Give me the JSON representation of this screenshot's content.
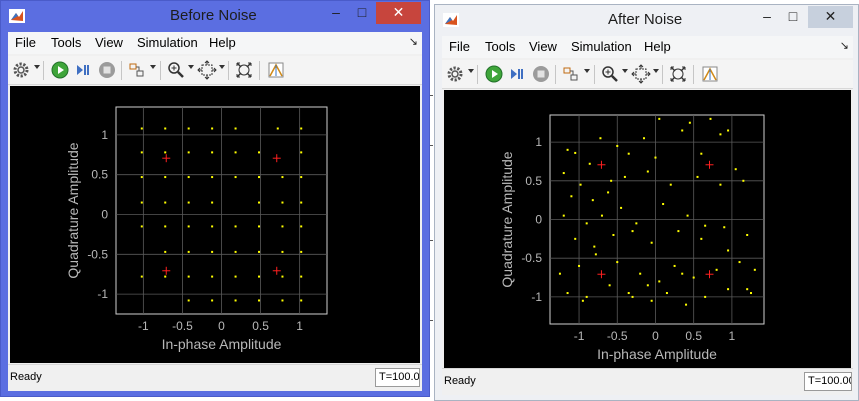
{
  "colors": {
    "before_frame": "#5b6ee1",
    "after_frame": "#eef0f4",
    "close_active": "#c7453d",
    "plot_bg": "#000000",
    "grid": "#5a5a5a",
    "axis_text": "#b8b8b8",
    "received_points": "#ffff00",
    "reference_points": "#ff2020"
  },
  "icons": [
    "matlab-icon",
    "minimize-icon",
    "maximize-icon",
    "close-icon",
    "gear-icon",
    "run-icon",
    "step-forward-icon",
    "stop-icon",
    "highlight-block-icon",
    "zoom-in-icon",
    "zoom-fit-icon",
    "scale-axes-icon",
    "measure-icon"
  ],
  "windows": {
    "before": {
      "title": "Before Noise",
      "menu": [
        "File",
        "Tools",
        "View",
        "Simulation",
        "Help"
      ],
      "status": "Ready",
      "time": "T=100.0("
    },
    "after": {
      "title": "After Noise",
      "menu": [
        "File",
        "Tools",
        "View",
        "Simulation",
        "Help"
      ],
      "status": "Ready",
      "time": "T=100.00"
    }
  },
  "chart_data": [
    {
      "type": "scatter",
      "title": "",
      "xlabel": "In-phase Amplitude",
      "ylabel": "Quadrature Amplitude",
      "xlim": [
        -1.35,
        1.35
      ],
      "ylim": [
        -1.25,
        1.35
      ],
      "xticks": [
        -1,
        -0.5,
        0,
        0.5,
        1
      ],
      "xtick_labels": [
        "-1",
        "-0.5",
        "0",
        "0.5",
        "1"
      ],
      "yticks": [
        -1,
        -0.5,
        0,
        0.5,
        1
      ],
      "ytick_labels": [
        "-1",
        "-0.5",
        "0",
        "0.5",
        "1"
      ],
      "grid": true,
      "reference": [
        [
          -0.707,
          0.707
        ],
        [
          0.707,
          0.707
        ],
        [
          -0.707,
          -0.707
        ],
        [
          0.707,
          -0.707
        ]
      ],
      "points": [
        [
          -1.02,
          1.08
        ],
        [
          -0.72,
          1.08
        ],
        [
          -0.42,
          1.08
        ],
        [
          -0.12,
          1.08
        ],
        [
          0.18,
          1.08
        ],
        [
          0.72,
          1.08
        ],
        [
          1.02,
          1.08
        ],
        [
          -1.02,
          0.78
        ],
        [
          -0.72,
          0.78
        ],
        [
          -0.42,
          0.78
        ],
        [
          -0.12,
          0.78
        ],
        [
          0.18,
          0.78
        ],
        [
          0.48,
          0.78
        ],
        [
          1.02,
          0.78
        ],
        [
          -1.02,
          0.47
        ],
        [
          -0.72,
          0.47
        ],
        [
          -0.42,
          0.47
        ],
        [
          -0.12,
          0.47
        ],
        [
          0.18,
          0.47
        ],
        [
          0.48,
          0.47
        ],
        [
          0.78,
          0.47
        ],
        [
          1.02,
          0.47
        ],
        [
          -1.02,
          0.15
        ],
        [
          -0.72,
          0.15
        ],
        [
          -0.42,
          0.15
        ],
        [
          -0.12,
          0.15
        ],
        [
          0.48,
          0.15
        ],
        [
          0.78,
          0.15
        ],
        [
          1.02,
          0.15
        ],
        [
          -1.02,
          -0.15
        ],
        [
          -0.72,
          -0.15
        ],
        [
          -0.42,
          -0.15
        ],
        [
          -0.12,
          -0.15
        ],
        [
          0.18,
          -0.15
        ],
        [
          0.48,
          -0.15
        ],
        [
          0.78,
          -0.15
        ],
        [
          1.02,
          -0.15
        ],
        [
          -0.72,
          -0.47
        ],
        [
          -0.42,
          -0.47
        ],
        [
          -0.12,
          -0.47
        ],
        [
          0.18,
          -0.47
        ],
        [
          0.48,
          -0.47
        ],
        [
          0.78,
          -0.47
        ],
        [
          1.02,
          -0.47
        ],
        [
          -1.02,
          -0.78
        ],
        [
          -0.72,
          -0.78
        ],
        [
          -0.42,
          -0.78
        ],
        [
          -0.12,
          -0.78
        ],
        [
          0.18,
          -0.78
        ],
        [
          0.48,
          -0.78
        ],
        [
          0.78,
          -0.78
        ],
        [
          1.02,
          -0.78
        ],
        [
          -0.42,
          -1.08
        ],
        [
          -0.12,
          -1.08
        ],
        [
          0.18,
          -1.08
        ],
        [
          0.48,
          -1.08
        ],
        [
          0.78,
          -1.08
        ],
        [
          1.02,
          -1.08
        ]
      ]
    },
    {
      "type": "scatter",
      "title": "",
      "xlabel": "In-phase Amplitude",
      "ylabel": "Quadrature Amplitude",
      "xlim": [
        -1.38,
        1.42
      ],
      "ylim": [
        -1.35,
        1.35
      ],
      "xticks": [
        -1,
        -0.5,
        0,
        0.5,
        1
      ],
      "xtick_labels": [
        "-1",
        "-0.5",
        "0",
        "0.5",
        "1"
      ],
      "yticks": [
        -1,
        -0.5,
        0,
        0.5,
        1
      ],
      "ytick_labels": [
        "-1",
        "-0.5",
        "0",
        "0.5",
        "1"
      ],
      "grid": true,
      "reference": [
        [
          -0.707,
          0.707
        ],
        [
          0.707,
          0.707
        ],
        [
          -0.707,
          -0.707
        ],
        [
          0.707,
          -0.707
        ]
      ],
      "points": [
        [
          -1.15,
          0.9
        ],
        [
          -1.05,
          0.86
        ],
        [
          -0.72,
          1.05
        ],
        [
          -0.5,
          0.95
        ],
        [
          0.05,
          1.3
        ],
        [
          0.45,
          1.25
        ],
        [
          0.72,
          1.3
        ],
        [
          0.85,
          1.1
        ],
        [
          0.95,
          1.15
        ],
        [
          -1.2,
          0.6
        ],
        [
          -0.98,
          0.45
        ],
        [
          -0.86,
          0.72
        ],
        [
          -0.58,
          0.5
        ],
        [
          -0.35,
          0.85
        ],
        [
          -0.15,
          1.05
        ],
        [
          0.0,
          0.8
        ],
        [
          0.35,
          1.15
        ],
        [
          0.6,
          0.85
        ],
        [
          1.05,
          0.65
        ],
        [
          -1.1,
          0.3
        ],
        [
          -0.82,
          0.25
        ],
        [
          -0.62,
          0.35
        ],
        [
          -0.4,
          0.55
        ],
        [
          -0.1,
          0.62
        ],
        [
          0.2,
          0.45
        ],
        [
          0.55,
          0.55
        ],
        [
          0.85,
          0.45
        ],
        [
          1.15,
          0.5
        ],
        [
          -1.2,
          0.05
        ],
        [
          -0.9,
          -0.05
        ],
        [
          -0.7,
          0.05
        ],
        [
          -0.45,
          0.15
        ],
        [
          -0.25,
          -0.05
        ],
        [
          0.1,
          0.2
        ],
        [
          0.42,
          0.05
        ],
        [
          0.65,
          -0.08
        ],
        [
          0.9,
          -0.1
        ],
        [
          1.2,
          -0.2
        ],
        [
          -1.05,
          -0.25
        ],
        [
          -0.8,
          -0.35
        ],
        [
          -0.55,
          -0.2
        ],
        [
          -0.3,
          -0.15
        ],
        [
          -0.05,
          -0.3
        ],
        [
          0.3,
          -0.15
        ],
        [
          0.6,
          -0.25
        ],
        [
          0.95,
          -0.4
        ],
        [
          1.1,
          -0.55
        ],
        [
          -1.25,
          -0.7
        ],
        [
          -1.0,
          -0.6
        ],
        [
          -0.78,
          -0.45
        ],
        [
          -0.5,
          -0.55
        ],
        [
          -0.2,
          -0.7
        ],
        [
          0.05,
          -0.8
        ],
        [
          0.25,
          -0.6
        ],
        [
          0.5,
          -0.75
        ],
        [
          0.8,
          -0.65
        ],
        [
          1.3,
          -0.65
        ],
        [
          -1.15,
          -0.95
        ],
        [
          -0.9,
          -1.0
        ],
        [
          -0.6,
          -0.85
        ],
        [
          -0.35,
          -0.95
        ],
        [
          -0.1,
          -0.85
        ],
        [
          0.15,
          -0.95
        ],
        [
          0.4,
          -1.1
        ],
        [
          0.65,
          -1.0
        ],
        [
          0.95,
          -0.9
        ],
        [
          1.25,
          -0.95
        ],
        [
          -0.95,
          -1.05
        ],
        [
          -0.3,
          -1.0
        ],
        [
          -0.05,
          -1.05
        ],
        [
          0.35,
          -0.7
        ],
        [
          1.2,
          -0.9
        ]
      ]
    }
  ]
}
